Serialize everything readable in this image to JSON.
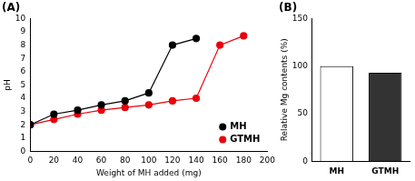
{
  "chart_data": [
    {
      "type": "line",
      "title": "(A)",
      "x_label": "Weight of MH added (mg)",
      "y_label": "pH",
      "series": [
        {
          "name": "MH",
          "color": "#000000",
          "marker": "circle",
          "line_style": "solid",
          "x": [
            0,
            20,
            40,
            60,
            80,
            100,
            120,
            140
          ],
          "values": [
            2.0,
            2.8,
            3.1,
            3.5,
            3.8,
            4.4,
            8.0,
            8.5
          ]
        },
        {
          "name": "GTMH",
          "color": "#e8000b",
          "marker": "circle",
          "line_style": "solid",
          "x": [
            0,
            20,
            40,
            60,
            80,
            100,
            120,
            140,
            160,
            180
          ],
          "values": [
            2.0,
            2.4,
            2.8,
            3.1,
            3.3,
            3.5,
            3.8,
            4.0,
            8.0,
            8.7
          ]
        }
      ],
      "xlim": [
        0,
        200
      ],
      "xticks": [
        0,
        20,
        40,
        60,
        80,
        100,
        120,
        140,
        160,
        180,
        200
      ],
      "ylim": [
        0,
        10
      ],
      "yticks": [
        0,
        1,
        2,
        3,
        4,
        5,
        6,
        7,
        8,
        9,
        10
      ],
      "grid": false,
      "legend": "lower right"
    },
    {
      "type": "bar",
      "title": "(B)",
      "y_label": "Relative Mg contents (%)",
      "categories": [
        "MH",
        "GTMH"
      ],
      "values": [
        100,
        93
      ],
      "colors": [
        "#ffffff",
        "#333333"
      ],
      "ylim": [
        0,
        150
      ],
      "yticks": [
        0,
        50,
        100,
        150
      ],
      "grid": false
    }
  ]
}
